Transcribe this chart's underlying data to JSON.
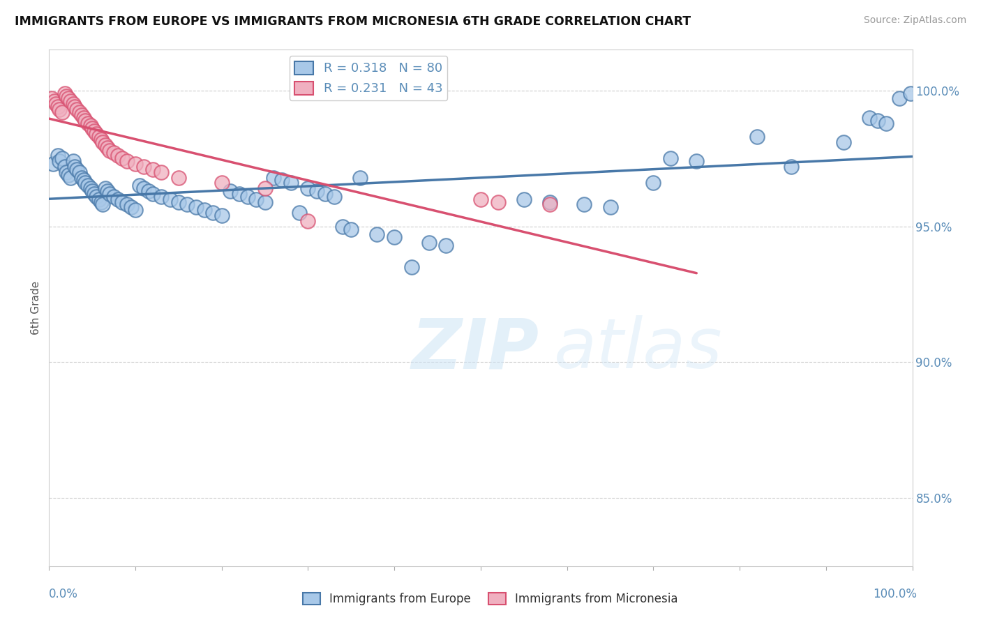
{
  "title": "IMMIGRANTS FROM EUROPE VS IMMIGRANTS FROM MICRONESIA 6TH GRADE CORRELATION CHART",
  "source": "Source: ZipAtlas.com",
  "ylabel": "6th Grade",
  "ytick_labels": [
    "85.0%",
    "90.0%",
    "95.0%",
    "100.0%"
  ],
  "ytick_values": [
    0.85,
    0.9,
    0.95,
    1.0
  ],
  "xlim": [
    0.0,
    1.0
  ],
  "ylim": [
    0.825,
    1.015
  ],
  "legend_europe": "R = 0.318   N = 80",
  "legend_micronesia": "R = 0.231   N = 43",
  "color_europe": "#a8c8e8",
  "color_europe_line": "#4878a8",
  "color_micronesia": "#f0b0c0",
  "color_micronesia_line": "#d85070",
  "color_axis_text": "#5b8db8",
  "background": "#ffffff",
  "watermark_zip": "ZIP",
  "watermark_atlas": "atlas",
  "europe_x": [
    0.005,
    0.01,
    0.012,
    0.015,
    0.018,
    0.02,
    0.022,
    0.025,
    0.028,
    0.03,
    0.032,
    0.035,
    0.038,
    0.04,
    0.042,
    0.045,
    0.048,
    0.05,
    0.052,
    0.055,
    0.058,
    0.06,
    0.062,
    0.065,
    0.068,
    0.07,
    0.075,
    0.08,
    0.085,
    0.09,
    0.095,
    0.1,
    0.105,
    0.11,
    0.115,
    0.12,
    0.13,
    0.14,
    0.15,
    0.16,
    0.17,
    0.18,
    0.19,
    0.2,
    0.21,
    0.22,
    0.23,
    0.24,
    0.25,
    0.26,
    0.27,
    0.28,
    0.29,
    0.3,
    0.31,
    0.32,
    0.33,
    0.34,
    0.35,
    0.36,
    0.38,
    0.4,
    0.42,
    0.44,
    0.46,
    0.55,
    0.58,
    0.62,
    0.65,
    0.7,
    0.72,
    0.75,
    0.82,
    0.86,
    0.92,
    0.95,
    0.96,
    0.97,
    0.985,
    0.998
  ],
  "europe_y": [
    0.973,
    0.976,
    0.974,
    0.975,
    0.972,
    0.97,
    0.969,
    0.968,
    0.974,
    0.972,
    0.971,
    0.97,
    0.968,
    0.967,
    0.966,
    0.965,
    0.964,
    0.963,
    0.962,
    0.961,
    0.96,
    0.959,
    0.958,
    0.964,
    0.963,
    0.962,
    0.961,
    0.96,
    0.959,
    0.958,
    0.957,
    0.956,
    0.965,
    0.964,
    0.963,
    0.962,
    0.961,
    0.96,
    0.959,
    0.958,
    0.957,
    0.956,
    0.955,
    0.954,
    0.963,
    0.962,
    0.961,
    0.96,
    0.959,
    0.968,
    0.967,
    0.966,
    0.955,
    0.964,
    0.963,
    0.962,
    0.961,
    0.95,
    0.949,
    0.968,
    0.947,
    0.946,
    0.935,
    0.944,
    0.943,
    0.96,
    0.959,
    0.958,
    0.957,
    0.966,
    0.975,
    0.974,
    0.983,
    0.972,
    0.981,
    0.99,
    0.989,
    0.988,
    0.997,
    0.999
  ],
  "micronesia_x": [
    0.003,
    0.006,
    0.008,
    0.01,
    0.012,
    0.015,
    0.018,
    0.02,
    0.022,
    0.025,
    0.028,
    0.03,
    0.032,
    0.035,
    0.038,
    0.04,
    0.042,
    0.045,
    0.048,
    0.05,
    0.052,
    0.055,
    0.058,
    0.06,
    0.062,
    0.065,
    0.068,
    0.07,
    0.075,
    0.08,
    0.085,
    0.09,
    0.1,
    0.11,
    0.12,
    0.13,
    0.15,
    0.2,
    0.25,
    0.3,
    0.5,
    0.52,
    0.58
  ],
  "micronesia_y": [
    0.997,
    0.996,
    0.995,
    0.994,
    0.993,
    0.992,
    0.999,
    0.998,
    0.997,
    0.996,
    0.995,
    0.994,
    0.993,
    0.992,
    0.991,
    0.99,
    0.989,
    0.988,
    0.987,
    0.986,
    0.985,
    0.984,
    0.983,
    0.982,
    0.981,
    0.98,
    0.979,
    0.978,
    0.977,
    0.976,
    0.975,
    0.974,
    0.973,
    0.972,
    0.971,
    0.97,
    0.968,
    0.966,
    0.964,
    0.952,
    0.96,
    0.959,
    0.958
  ]
}
